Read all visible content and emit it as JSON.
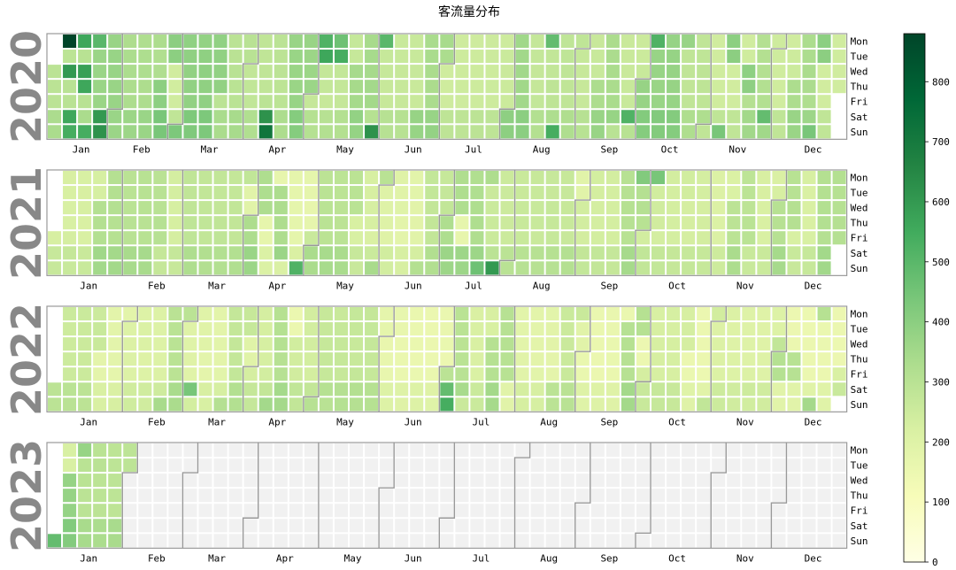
{
  "chart_data": {
    "type": "heatmap",
    "title": "客流量分布",
    "years": [
      "2020",
      "2021",
      "2022",
      "2023"
    ],
    "months": [
      "Jan",
      "Feb",
      "Mar",
      "Apr",
      "May",
      "Jun",
      "Jul",
      "Aug",
      "Sep",
      "Oct",
      "Nov",
      "Dec"
    ],
    "weekdays": [
      "Mon",
      "Tue",
      "Wed",
      "Thu",
      "Fri",
      "Sat",
      "Sun"
    ],
    "colorbar": {
      "min": 0,
      "max": 880,
      "ticks": [
        0,
        100,
        200,
        300,
        400,
        500,
        600,
        700,
        800
      ],
      "colormap": "Greens"
    },
    "data_end": "2023-01-31",
    "year_levels": {
      "2020": 320,
      "2021": 250,
      "2022": 230,
      "2023": 300
    },
    "highlights": [
      {
        "date": "2020-01-06",
        "value": 880
      },
      {
        "date": "2020-01-13",
        "value": 560
      },
      {
        "date": "2020-01-20",
        "value": 500
      },
      {
        "date": "2020-01-08",
        "value": 600
      },
      {
        "date": "2020-01-15",
        "value": 580
      },
      {
        "date": "2020-01-16",
        "value": 560
      },
      {
        "date": "2020-01-11",
        "value": 560
      },
      {
        "date": "2020-01-12",
        "value": 540
      },
      {
        "date": "2020-01-19",
        "value": 540
      },
      {
        "date": "2020-01-25",
        "value": 600
      },
      {
        "date": "2020-01-26",
        "value": 620
      },
      {
        "date": "2020-04-11",
        "value": 620
      },
      {
        "date": "2020-04-12",
        "value": 720
      },
      {
        "date": "2020-05-04",
        "value": 520
      },
      {
        "date": "2020-05-05",
        "value": 560
      },
      {
        "date": "2020-05-11",
        "value": 460
      },
      {
        "date": "2020-05-12",
        "value": 540
      },
      {
        "date": "2020-05-31",
        "value": 620
      },
      {
        "date": "2020-06-01",
        "value": 500
      },
      {
        "date": "2020-08-17",
        "value": 480
      },
      {
        "date": "2020-08-23",
        "value": 540
      },
      {
        "date": "2020-09-26",
        "value": 520
      },
      {
        "date": "2020-10-05",
        "value": 520
      },
      {
        "date": "2020-11-28",
        "value": 480
      },
      {
        "date": "2021-04-25",
        "value": 520
      },
      {
        "date": "2021-07-25",
        "value": 600
      },
      {
        "date": "2021-07-18",
        "value": 460
      },
      {
        "date": "2021-09-27",
        "value": 420
      },
      {
        "date": "2021-10-04",
        "value": 440
      },
      {
        "date": "2022-07-02",
        "value": 480
      },
      {
        "date": "2022-07-03",
        "value": 540
      },
      {
        "date": "2022-03-05",
        "value": 440
      },
      {
        "date": "2023-01-01",
        "value": 480
      }
    ]
  }
}
